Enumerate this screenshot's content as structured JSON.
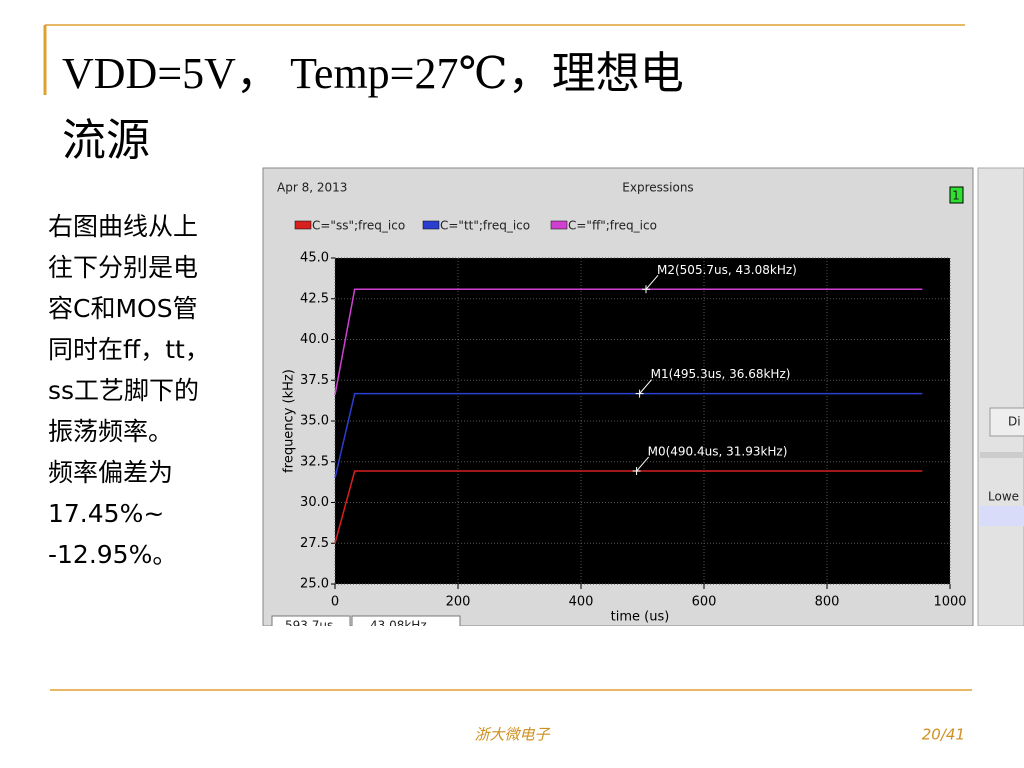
{
  "slide": {
    "title_lines": [
      "VDD=5V， Temp=27℃，理想电",
      "流源"
    ],
    "body_lines": [
      "右图曲线从上",
      "往下分别是电",
      "容C和MOS管",
      "同时在ff，tt，",
      "ss工艺脚下的",
      "振荡频率。",
      "频率偏差为",
      "17.45%~",
      "-12.95%。"
    ],
    "footer": "浙大微电子",
    "page": "20/41"
  },
  "window": {
    "date": "Apr 8, 2013",
    "header": "Expressions",
    "badge": "1",
    "status": [
      "593.7us",
      "43.08kHz"
    ],
    "side_button": "Di",
    "side_label": "Lowe"
  },
  "chart_data": {
    "type": "line",
    "xlabel": "time (us)",
    "ylabel": "frequency (kHz)",
    "xlim": [
      0,
      1000
    ],
    "xticks": [
      0,
      200,
      400,
      600,
      800,
      1000
    ],
    "ylim": [
      25,
      45
    ],
    "yticks": [
      {
        "value": 25,
        "label": "25.0"
      },
      {
        "value": 27.5,
        "label": "27.5"
      },
      {
        "value": 30,
        "label": "30.0"
      },
      {
        "value": 32.5,
        "label": "32.5"
      },
      {
        "value": 35,
        "label": "35.0"
      },
      {
        "value": 37.5,
        "label": "37.5"
      },
      {
        "value": 40,
        "label": "40.0"
      },
      {
        "value": 42.5,
        "label": "42.5"
      },
      {
        "value": 45,
        "label": "45.0"
      }
    ],
    "grid": true,
    "series": [
      {
        "name": "C=\"ss\";freq_ico",
        "color": "#d82020",
        "x": [
          0,
          32,
          955
        ],
        "values": [
          27.5,
          31.93,
          31.93
        ]
      },
      {
        "name": "C=\"tt\";freq_ico",
        "color": "#2a3fd0",
        "x": [
          0,
          32,
          955
        ],
        "values": [
          31.5,
          36.68,
          36.68
        ]
      },
      {
        "name": "C=\"ff\";freq_ico",
        "color": "#d040d0",
        "x": [
          0,
          32,
          955
        ],
        "values": [
          36.6,
          43.08,
          43.08
        ]
      }
    ],
    "annotations": [
      {
        "x": 490.4,
        "y": 31.93,
        "label": "M0(490.4us, 31.93kHz)"
      },
      {
        "x": 495.3,
        "y": 36.68,
        "label": "M1(495.3us, 36.68kHz)"
      },
      {
        "x": 505.7,
        "y": 43.08,
        "label": "M2(505.7us, 43.08kHz)"
      }
    ]
  }
}
